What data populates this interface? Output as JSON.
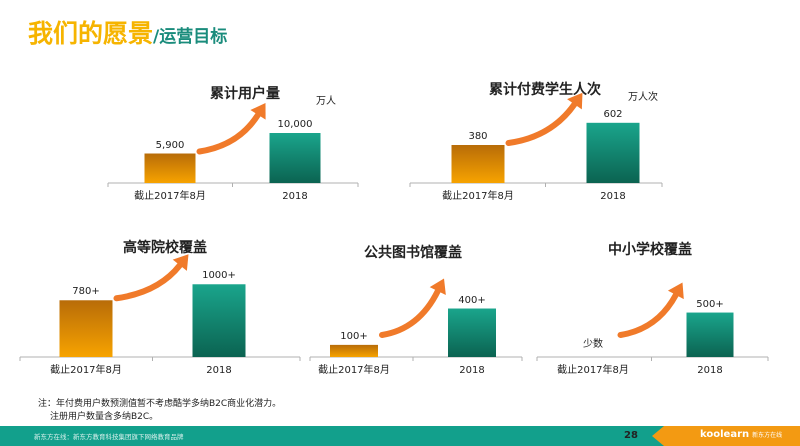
{
  "header": {
    "title": "我们的愿景",
    "subtitle": "/运营目标"
  },
  "colors": {
    "title": "#f6b400",
    "subtitle": "#1a8c7c",
    "bar_2017": "#f29a00",
    "bar_2018": "#16937c",
    "arrow": "#f07a2a",
    "footer": "#12a08c",
    "footer_accent": "#f39a12"
  },
  "chart_data": [
    {
      "type": "bar",
      "title": "累计用户量",
      "unit": "万人",
      "categories": [
        "截止2017年8月",
        "2018"
      ],
      "values": [
        5900,
        10000
      ],
      "value_labels": [
        "5,900",
        "10,000"
      ],
      "ylim": [
        0,
        16000
      ]
    },
    {
      "type": "bar",
      "title": "累计付费学生人次",
      "unit": "万人次",
      "categories": [
        "截止2017年8月",
        "2018"
      ],
      "values": [
        380,
        602
      ],
      "value_labels": [
        "380",
        "602"
      ],
      "ylim": [
        0,
        800
      ]
    },
    {
      "type": "bar",
      "title": "高等院校覆盖",
      "categories": [
        "截止2017年8月",
        "2018"
      ],
      "values": [
        780,
        1000
      ],
      "value_labels": [
        "780+",
        "1000+"
      ],
      "ylim": [
        0,
        1100
      ]
    },
    {
      "type": "bar",
      "title": "公共图书馆覆盖",
      "categories": [
        "截止2017年8月",
        "2018"
      ],
      "values": [
        100,
        400
      ],
      "value_labels": [
        "100+",
        "400+"
      ],
      "ylim": [
        0,
        660
      ]
    },
    {
      "type": "bar",
      "title": "中小学校覆盖",
      "categories": [
        "截止2017年8月",
        "2018"
      ],
      "values": [
        0,
        500
      ],
      "value_labels": [
        "少数",
        "500+"
      ],
      "ylim": [
        0,
        900
      ]
    }
  ],
  "note": {
    "line1": "注：年付费用户数预测值暂不考虑酷学多纳B2C商业化潜力。",
    "line2": "注册用户数量含多纳B2C。"
  },
  "footer": {
    "text": "新东方在线：新东方教育科技集团旗下网络教育品牌",
    "page": "28",
    "logo": "koolearn",
    "logo_sub": "新东方在线"
  }
}
